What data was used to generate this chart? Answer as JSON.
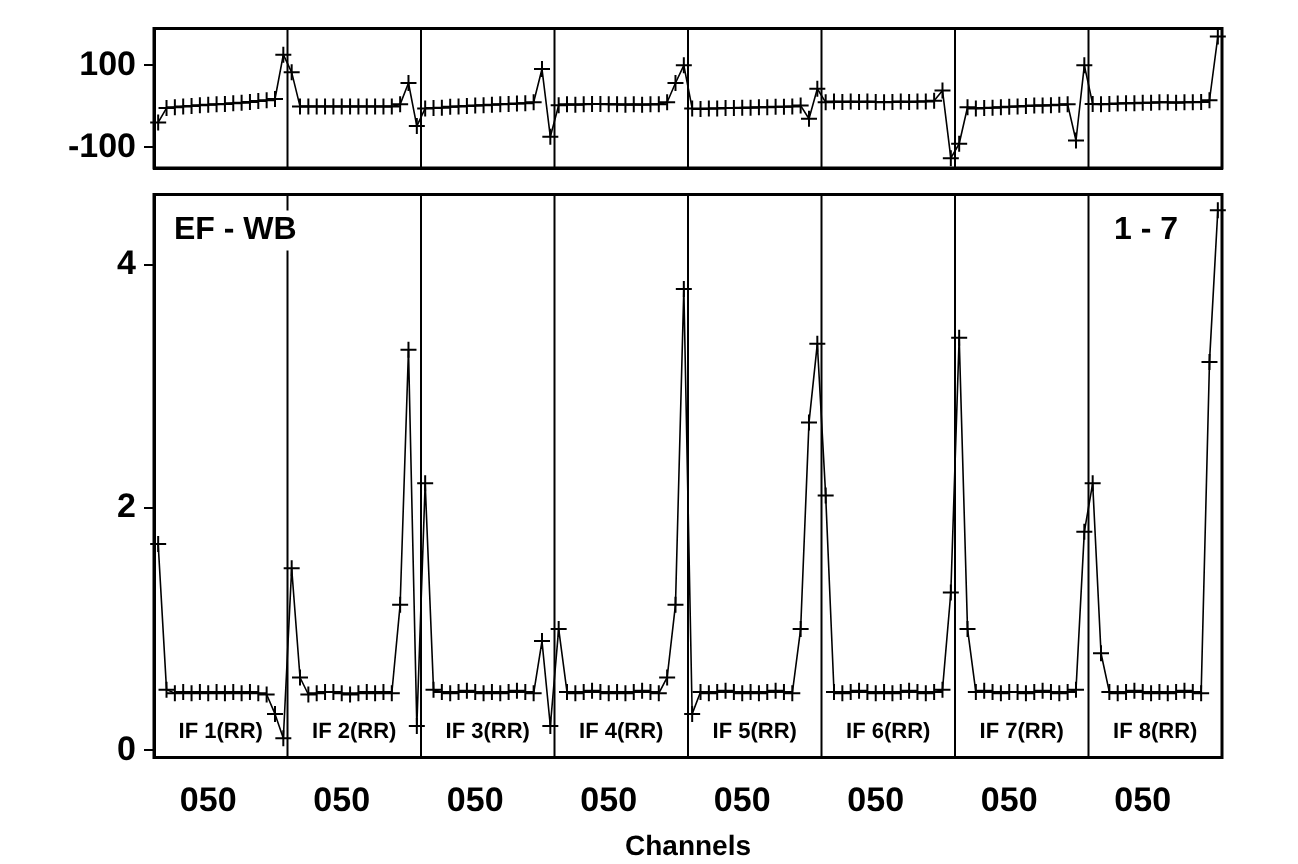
{
  "chart_data": [
    {
      "type": "line",
      "tick_labels": "y",
      "marker": "cross",
      "grid": false,
      "legend": false,
      "line_style": "solid",
      "categories": [
        null,
        null,
        null,
        null,
        null,
        null,
        null,
        null,
        null,
        null,
        null,
        null,
        null,
        null,
        null,
        null,
        null,
        null,
        null,
        null,
        null,
        null,
        null,
        null,
        null,
        null,
        null,
        null,
        null,
        null,
        null,
        null,
        null,
        null,
        null,
        null,
        null,
        null,
        null,
        null,
        null,
        null,
        null,
        null,
        null,
        null,
        null,
        null,
        null,
        null,
        null,
        null,
        null,
        null,
        null,
        null,
        null,
        null,
        null,
        null,
        null,
        null,
        null,
        null,
        null,
        null,
        null,
        null,
        null,
        null,
        null,
        null,
        null,
        null,
        null,
        null,
        null,
        null,
        null,
        null,
        null,
        null,
        null,
        null,
        null,
        null,
        null,
        null,
        null,
        null,
        null,
        null,
        null,
        null,
        null,
        null,
        null,
        null,
        null,
        null,
        null,
        null,
        null,
        null,
        null,
        null,
        null,
        null,
        null,
        null,
        null,
        null,
        null,
        null,
        null,
        null,
        null,
        null,
        null,
        null,
        null,
        null,
        null,
        null,
        null,
        null,
        null,
        null
      ],
      "ylim": [
        -150,
        190
      ],
      "yticks": [
        -100,
        100
      ],
      "series": [
        {
          "color": "#000000",
          "values": [
            -39,
            -4,
            -2,
            0,
            1,
            3,
            4,
            5,
            6,
            8,
            9,
            11,
            13,
            15,
            18,
            126,
            83,
            0,
            0,
            0,
            0,
            0,
            0,
            0,
            0,
            0,
            0,
            0,
            0,
            5,
            57,
            -48,
            -5,
            -4,
            -3,
            -1,
            0,
            1,
            2,
            3,
            4,
            5,
            6,
            7,
            8,
            10,
            91,
            -74,
            3,
            5,
            4,
            5,
            6,
            6,
            5,
            5,
            4,
            5,
            4,
            5,
            5,
            10,
            57,
            100,
            -5,
            -6,
            -5,
            -5,
            -4,
            -4,
            -3,
            -3,
            -2,
            -2,
            -1,
            -1,
            0,
            2,
            -30,
            43,
            10,
            12,
            11,
            12,
            11,
            12,
            11,
            10,
            11,
            12,
            11,
            12,
            12,
            14,
            39,
            -126,
            -91,
            -2,
            -5,
            -4,
            -3,
            -2,
            -1,
            0,
            1,
            2,
            2,
            3,
            4,
            5,
            -83,
            100,
            6,
            5,
            6,
            7,
            8,
            8,
            9,
            9,
            10,
            10,
            9,
            10,
            10,
            11,
            15,
            170
          ]
        }
      ]
    },
    {
      "type": "line",
      "marker": "cross",
      "grid": false,
      "legend": false,
      "line_style": "solid",
      "xlabel": "Channels",
      "categories": [
        null,
        null,
        null,
        null,
        null,
        null,
        "050",
        null,
        null,
        null,
        null,
        null,
        null,
        null,
        null,
        null,
        null,
        null,
        null,
        null,
        null,
        null,
        "050",
        null,
        null,
        null,
        null,
        null,
        null,
        null,
        null,
        null,
        null,
        null,
        null,
        null,
        null,
        null,
        "050",
        null,
        null,
        null,
        null,
        null,
        null,
        null,
        null,
        null,
        null,
        null,
        null,
        null,
        null,
        null,
        "050",
        null,
        null,
        null,
        null,
        null,
        null,
        null,
        null,
        null,
        null,
        null,
        null,
        null,
        null,
        null,
        "050",
        null,
        null,
        null,
        null,
        null,
        null,
        null,
        null,
        null,
        null,
        null,
        null,
        null,
        null,
        null,
        "050",
        null,
        null,
        null,
        null,
        null,
        null,
        null,
        null,
        null,
        null,
        null,
        null,
        null,
        null,
        null,
        "050",
        null,
        null,
        null,
        null,
        null,
        null,
        null,
        null,
        null,
        null,
        null,
        null,
        null,
        null,
        null,
        "050",
        null,
        null,
        null,
        null,
        null,
        null,
        null,
        null,
        null
      ],
      "ylim": [
        -0.06,
        4.58
      ],
      "yticks": [
        0,
        2,
        4
      ],
      "annotations": [
        "EF - WB",
        "1 - 7",
        "IF 1(RR)",
        "IF 2(RR)",
        "IF 3(RR)",
        "IF 4(RR)",
        "IF 5(RR)",
        "IF 6(RR)",
        "IF 7(RR)",
        "IF 8(RR)"
      ],
      "series": [
        {
          "color": "#000000",
          "values": [
            1.7,
            0.5,
            0.47,
            0.48,
            0.47,
            0.48,
            0.47,
            0.48,
            0.47,
            0.48,
            0.47,
            0.48,
            0.47,
            0.46,
            0.3,
            0.1,
            1.5,
            0.6,
            0.46,
            0.47,
            0.48,
            0.48,
            0.47,
            0.46,
            0.47,
            0.48,
            0.47,
            0.48,
            0.47,
            1.2,
            3.3,
            0.2,
            2.2,
            0.5,
            0.48,
            0.47,
            0.48,
            0.49,
            0.48,
            0.47,
            0.48,
            0.47,
            0.48,
            0.49,
            0.48,
            0.47,
            0.9,
            0.2,
            1.0,
            0.48,
            0.47,
            0.48,
            0.49,
            0.48,
            0.47,
            0.48,
            0.47,
            0.48,
            0.49,
            0.48,
            0.47,
            0.6,
            1.2,
            3.8,
            0.3,
            0.48,
            0.47,
            0.48,
            0.49,
            0.48,
            0.47,
            0.48,
            0.47,
            0.48,
            0.49,
            0.48,
            0.47,
            1.0,
            2.7,
            3.35,
            2.1,
            0.48,
            0.47,
            0.48,
            0.49,
            0.48,
            0.47,
            0.48,
            0.47,
            0.48,
            0.49,
            0.48,
            0.47,
            0.48,
            0.5,
            1.3,
            3.4,
            1.0,
            0.48,
            0.49,
            0.48,
            0.47,
            0.48,
            0.48,
            0.47,
            0.48,
            0.49,
            0.48,
            0.47,
            0.48,
            0.5,
            1.8,
            2.2,
            0.8,
            0.48,
            0.47,
            0.48,
            0.49,
            0.48,
            0.47,
            0.48,
            0.47,
            0.48,
            0.49,
            0.48,
            0.47,
            3.2,
            4.45
          ]
        }
      ]
    }
  ]
}
